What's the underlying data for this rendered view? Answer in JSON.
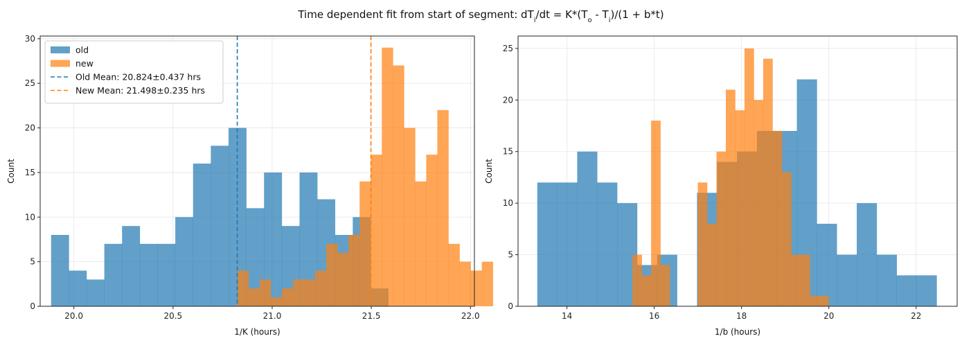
{
  "suptitle": {
    "pre": "Time dependent fit from start of segment: dT",
    "sub1": "i",
    "mid1": "/dt = K*(T",
    "sub2": "o",
    "mid2": " - T",
    "sub3": "i",
    "post": ")/(1 + b*t)"
  },
  "colors": {
    "old": "#1f77b4",
    "new": "#ff7f0e",
    "overlap": "#d0883b",
    "grid": "#e6e6e6",
    "axis": "#222222"
  },
  "chart_data": [
    {
      "type": "bar",
      "subtype": "histogram",
      "xlabel": "1/K (hours)",
      "ylabel": "Count",
      "xlim": [
        19.83,
        22.02
      ],
      "ylim": [
        0,
        30.3
      ],
      "xticks": [
        20.0,
        20.5,
        21.0,
        21.5,
        22.0
      ],
      "xtick_labels": [
        "20.0",
        "20.5",
        "21.0",
        "21.5",
        "22.0"
      ],
      "yticks": [
        0,
        5,
        10,
        15,
        20,
        25,
        30
      ],
      "grid": true,
      "legend": {
        "placement": "top-left",
        "entries": [
          {
            "label": "old",
            "kind": "patch",
            "series": "old"
          },
          {
            "label": "new",
            "kind": "patch",
            "series": "new"
          },
          {
            "label": "Old Mean: 20.824±0.437 hrs",
            "kind": "dashed-line",
            "series": "old"
          },
          {
            "label": "New Mean: 21.498±0.235 hrs",
            "kind": "dashed-line",
            "series": "new"
          }
        ]
      },
      "vlines": [
        {
          "x": 20.824,
          "series": "old"
        },
        {
          "x": 21.498,
          "series": "new"
        }
      ],
      "series": [
        {
          "name": "old",
          "bin_start": 19.885,
          "bin_width": 0.0895,
          "counts": [
            8,
            4,
            3,
            7,
            9,
            7,
            7,
            10,
            16,
            18,
            20,
            11,
            15,
            9,
            15,
            12,
            8,
            10,
            2
          ]
        },
        {
          "name": "new",
          "bin_start": 20.825,
          "bin_width": 0.056,
          "counts": [
            4,
            2,
            3,
            1,
            2,
            3,
            3,
            4,
            7,
            6,
            8,
            14,
            17,
            29,
            27,
            20,
            14,
            17,
            22,
            7,
            5,
            4,
            5
          ]
        }
      ]
    },
    {
      "type": "bar",
      "subtype": "histogram",
      "xlabel": "1/b (hours)",
      "ylabel": "Count",
      "xlim": [
        12.88,
        22.94
      ],
      "ylim": [
        0,
        26.2
      ],
      "xticks": [
        14,
        16,
        18,
        20,
        22
      ],
      "xtick_labels": [
        "14",
        "16",
        "18",
        "20",
        "22"
      ],
      "yticks": [
        0,
        5,
        10,
        15,
        20,
        25
      ],
      "grid": true,
      "series": [
        {
          "name": "old",
          "bin_start": 13.32,
          "bin_width": 0.4575,
          "counts": [
            12,
            12,
            15,
            12,
            10,
            4,
            5,
            0,
            11,
            14,
            15,
            17,
            17,
            22,
            8,
            5,
            10,
            5,
            3,
            3
          ]
        },
        {
          "name": "new",
          "bin_start": 15.5,
          "bin_width": 0.214,
          "counts": [
            5,
            3,
            18,
            4,
            0,
            0,
            0,
            12,
            8,
            15,
            21,
            19,
            25,
            20,
            24,
            17,
            13,
            5,
            5,
            1,
            1
          ]
        }
      ]
    }
  ]
}
